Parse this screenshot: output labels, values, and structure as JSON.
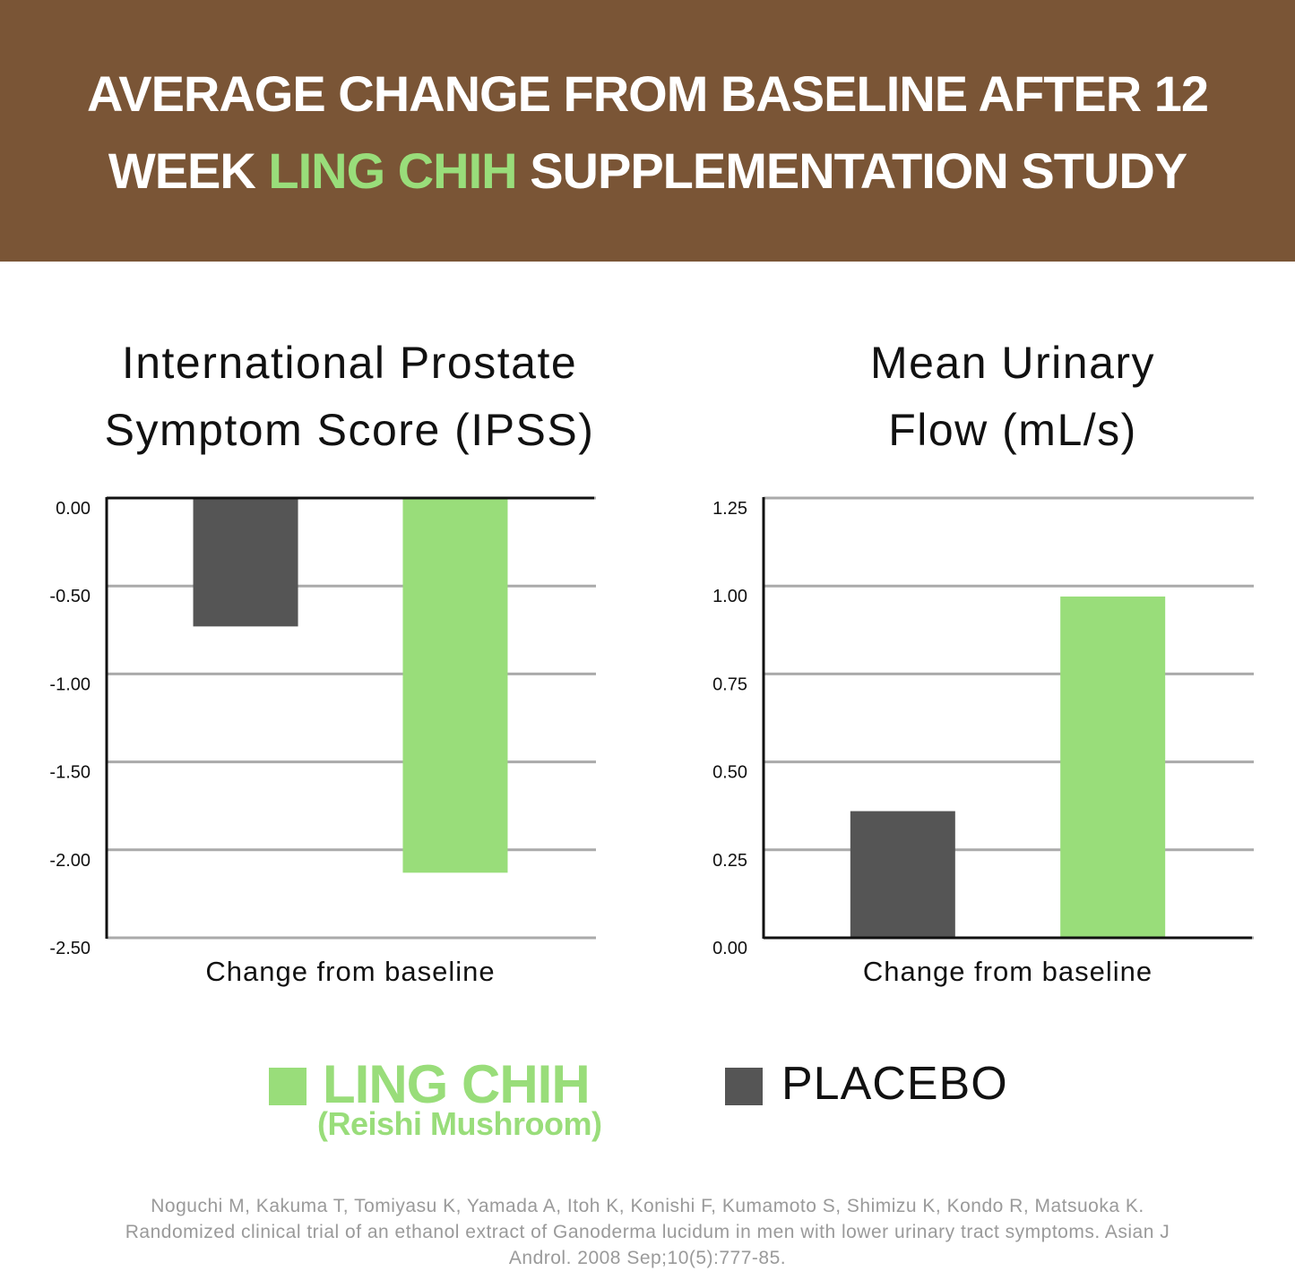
{
  "header": {
    "title_parts": [
      "AVERAGE CHANGE FROM BASELINE AFTER 12",
      "WEEK",
      "LING CHIH",
      "SUPPLEMENTATION STUDY"
    ]
  },
  "chart_data": [
    {
      "type": "bar",
      "title": "International Prostate Symptom Score (IPSS)",
      "categories": [
        "Change from baseline"
      ],
      "series": [
        {
          "name": "PLACEBO",
          "color": "#555555",
          "values": [
            -0.73
          ]
        },
        {
          "name": "LING CHIH",
          "color": "#99dd7a",
          "values": [
            -2.13
          ]
        }
      ],
      "ylim": [
        -2.5,
        0
      ],
      "yticks": [
        {
          "value": 0,
          "label": "0.00"
        },
        {
          "value": -0.5,
          "label": "-0.50"
        },
        {
          "value": -1,
          "label": "-1.00"
        },
        {
          "value": -1.5,
          "label": "-1.50"
        },
        {
          "value": -2,
          "label": "-2.00"
        },
        {
          "value": -2.5,
          "label": "-2.50"
        }
      ],
      "grid": true
    },
    {
      "type": "bar",
      "title": "Mean Urinary Flow (mL/s)",
      "categories": [
        "Change from baseline"
      ],
      "series": [
        {
          "name": "PLACEBO",
          "color": "#555555",
          "values": [
            0.36
          ]
        },
        {
          "name": "LING CHIH",
          "color": "#99dd7a",
          "values": [
            0.97
          ]
        }
      ],
      "ylim": [
        0,
        1.25
      ],
      "yticks": [
        {
          "value": 0,
          "label": "0.00"
        },
        {
          "value": 0.25,
          "label": "0.25"
        },
        {
          "value": 0.5,
          "label": "0.50"
        },
        {
          "value": 0.75,
          "label": "0.75"
        },
        {
          "value": 1,
          "label": "1.00"
        },
        {
          "value": 1.25,
          "label": "1.25"
        }
      ],
      "grid": true
    }
  ],
  "legend": {
    "note": "(Reishi Mushroom)"
  },
  "citation": [
    "Noguchi M, Kakuma T, Tomiyasu K, Yamada A, Itoh K, Konishi F, Kumamoto S, Shimizu K, Kondo R, Matsuoka K.",
    "Randomized clinical trial of an ethanol extract of Ganoderma lucidum in men with lower urinary tract symptoms. Asian J",
    "Androl. 2008 Sep;10(5):777-85."
  ]
}
